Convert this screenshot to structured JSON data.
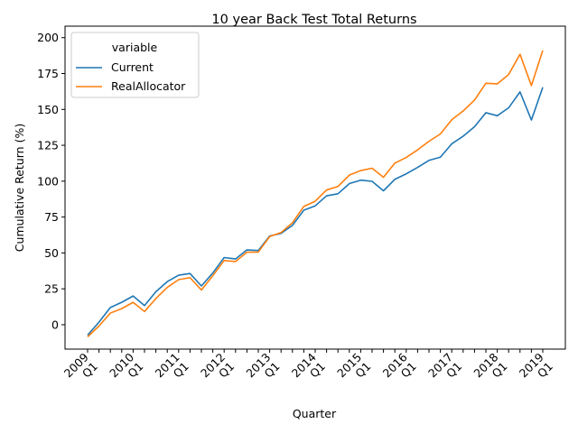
{
  "chart_data": {
    "type": "line",
    "title": "10 year Back Test Total Returns",
    "xlabel": "Quarter",
    "ylabel": "Cumulative Return (%)",
    "ylim": [
      -17,
      208
    ],
    "yticks": [
      0,
      25,
      50,
      75,
      100,
      125,
      150,
      175,
      200
    ],
    "grid": false,
    "legend": {
      "title": "variable",
      "placement": "top-left",
      "entries": [
        "Current",
        "RealAllocator"
      ]
    },
    "xtick_labels": [
      "2009\nQ1",
      "2010\nQ1",
      "2011\nQ1",
      "2012\nQ1",
      "2013\nQ1",
      "2014\nQ1",
      "2015\nQ1",
      "2016\nQ1",
      "2017\nQ1",
      "2018\nQ1",
      "2019\nQ1"
    ],
    "series": [
      {
        "name": "Current",
        "color": "#1f77b4",
        "values": [
          -7.3,
          1.8,
          12.0,
          15.6,
          20.0,
          13.3,
          23.0,
          30.0,
          34.5,
          35.7,
          27.0,
          36.0,
          46.8,
          45.8,
          52.1,
          51.7,
          61.8,
          63.6,
          69.2,
          79.8,
          82.8,
          89.8,
          91.2,
          98.3,
          100.7,
          99.9,
          93.3,
          101.3,
          105.1,
          109.6,
          114.5,
          116.7,
          126.0,
          131.3,
          137.9,
          147.7,
          145.6,
          151.1,
          162.2,
          142.6,
          165.4
        ]
      },
      {
        "name": "RealAllocator",
        "color": "#ff7f0e",
        "values": [
          -8.5,
          -0.9,
          8.1,
          11.2,
          15.6,
          9.2,
          18.2,
          26.0,
          31.4,
          32.8,
          24.2,
          34.1,
          44.7,
          44.0,
          50.5,
          50.6,
          61.4,
          64.2,
          71.0,
          82.4,
          86.0,
          93.9,
          96.3,
          104.2,
          107.4,
          109.0,
          102.7,
          112.6,
          116.5,
          121.8,
          127.8,
          132.9,
          142.8,
          148.9,
          156.5,
          168.2,
          167.8,
          174.3,
          188.4,
          166.6,
          191.1
        ]
      }
    ]
  }
}
